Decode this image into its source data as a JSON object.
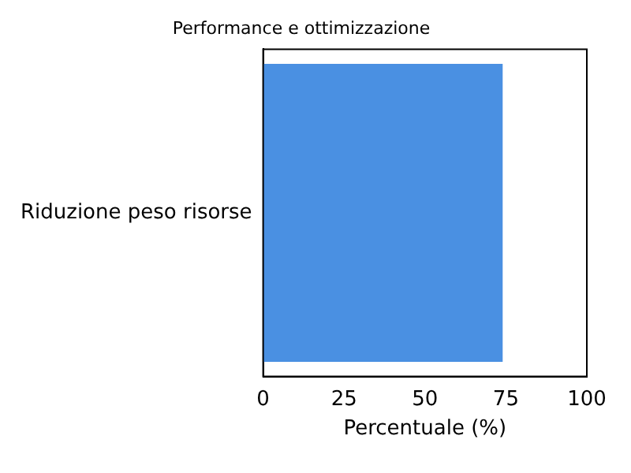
{
  "chart_data": {
    "type": "bar",
    "orientation": "horizontal",
    "title": "Performance e ottimizzazione",
    "xlabel": "Percentuale (%)",
    "categories": [
      "Riduzione peso risorse"
    ],
    "values": [
      74
    ],
    "color": "#4a90e2",
    "xlim": [
      0,
      100
    ],
    "xticks": [
      0,
      25,
      50,
      75,
      100
    ],
    "grid": false,
    "legend": false
  }
}
